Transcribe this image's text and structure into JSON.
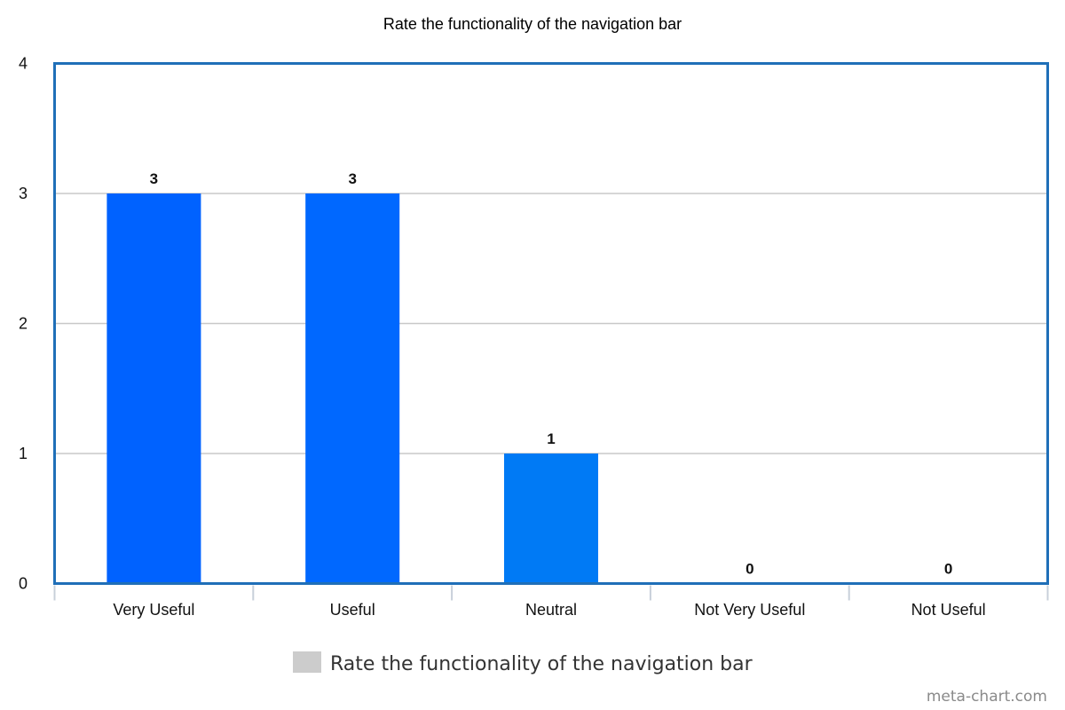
{
  "chart_data": {
    "type": "bar",
    "title": "Rate the functionality of the navigation bar",
    "categories": [
      "Very Useful",
      "Useful",
      "Neutral",
      "Not Very Useful",
      "Not Useful"
    ],
    "series": [
      {
        "name": "Rate the functionality of the navigation bar",
        "values": [
          3,
          3,
          1,
          0,
          0
        ],
        "colors": [
          "#0062ff",
          "#0068ff",
          "#007af5",
          "#008ae8",
          "#0096dd"
        ]
      }
    ],
    "data_labels": [
      "3",
      "3",
      "1",
      "0",
      "0"
    ],
    "xlabel": "",
    "ylabel": "",
    "ylim": [
      0,
      4
    ],
    "yticks": [
      "0",
      "1",
      "2",
      "3",
      "4"
    ],
    "grid": true,
    "legend": {
      "position": "bottom-center",
      "label": "Rate the functionality of the navigation bar",
      "swatch_color": "#cccccc"
    },
    "colors": {
      "frame": "#1f6fb8",
      "grid": "#c8c8c8",
      "axis_tick": "#c8d0da"
    }
  },
  "watermark": "meta-chart.com"
}
